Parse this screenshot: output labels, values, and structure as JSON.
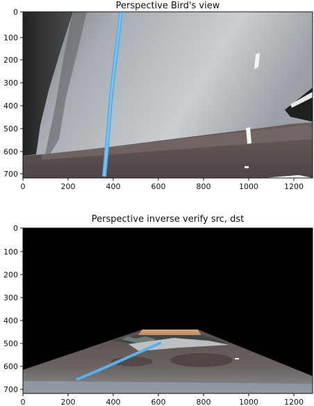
{
  "plots": [
    {
      "title": "Perspective Bird's view",
      "x_ticks": [
        "0",
        "200",
        "400",
        "600",
        "800",
        "1000",
        "1200"
      ],
      "y_ticks": [
        "0",
        "100",
        "200",
        "300",
        "400",
        "500",
        "600",
        "700"
      ]
    },
    {
      "title": "Perspective inverse verify src, dst",
      "x_ticks": [
        "0",
        "200",
        "400",
        "600",
        "800",
        "1000",
        "1200"
      ],
      "y_ticks": [
        "0",
        "100",
        "200",
        "300",
        "400",
        "500",
        "600",
        "700"
      ]
    }
  ]
}
